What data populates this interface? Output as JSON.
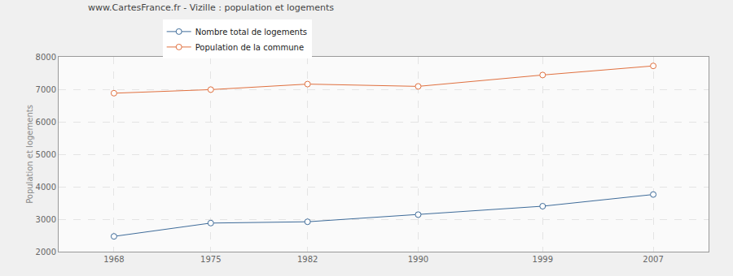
{
  "chart_data": {
    "type": "line",
    "title": "www.CartesFrance.fr - Vizille : population et logements",
    "y_label": "Population et logements",
    "x": [
      1968,
      1975,
      1982,
      1990,
      1999,
      2007
    ],
    "series": [
      {
        "name": "Nombre total de logements",
        "color": "#3e6b99",
        "values": [
          2470,
          2880,
          2920,
          3140,
          3400,
          3760
        ]
      },
      {
        "name": "Population de la commune",
        "color": "#e0703f",
        "values": [
          6880,
          6990,
          7160,
          7090,
          7440,
          7720
        ]
      }
    ],
    "xlim": [
      1964,
      2011
    ],
    "xticks": [
      1968,
      1975,
      1982,
      1990,
      1999,
      2007
    ],
    "ylim": [
      2000,
      8000
    ],
    "yticks": [
      2000,
      3000,
      4000,
      5000,
      6000,
      7000,
      8000
    ],
    "grid": true,
    "legend": "top left",
    "marker": "circle",
    "line_style": "solid"
  }
}
